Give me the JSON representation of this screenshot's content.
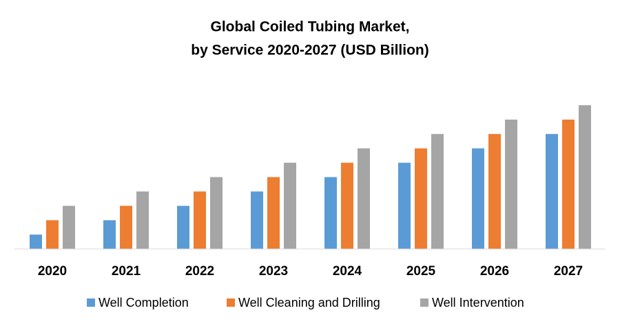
{
  "chart_data": {
    "type": "bar",
    "title": [
      "Global Coiled Tubing Market,",
      "by Service 2020-2027 (USD Billion)"
    ],
    "categories": [
      "2020",
      "2021",
      "2022",
      "2023",
      "2024",
      "2025",
      "2026",
      "2027"
    ],
    "series": [
      {
        "name": "Well Completion",
        "color": "#5b9bd5",
        "values": [
          1,
          2,
          3,
          4,
          5,
          6,
          7,
          8
        ]
      },
      {
        "name": "Well Cleaning and Drilling",
        "color": "#ed7d31",
        "values": [
          2,
          3,
          4,
          5,
          6,
          7,
          8,
          9
        ]
      },
      {
        "name": "Well Intervention",
        "color": "#a5a5a5",
        "values": [
          3,
          4,
          5,
          6,
          7,
          8,
          9,
          10
        ]
      }
    ],
    "ylim": [
      0,
      10
    ],
    "legend": "bottom"
  }
}
